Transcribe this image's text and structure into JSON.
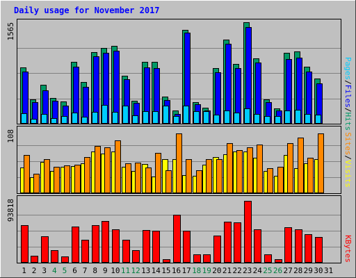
{
  "chart_data": {
    "type": "bar",
    "title": "Daily usage for November 2017",
    "categories": [
      "1",
      "2",
      "3",
      "4",
      "5",
      "6",
      "7",
      "8",
      "9",
      "10",
      "11",
      "12",
      "13",
      "14",
      "15",
      "16",
      "17",
      "18",
      "19",
      "20",
      "21",
      "22",
      "23",
      "24",
      "25",
      "26",
      "27",
      "28",
      "29",
      "30",
      "31"
    ],
    "weekend_days": [
      "4",
      "5",
      "11",
      "12",
      "18",
      "19",
      "25",
      "26"
    ],
    "panels": [
      {
        "name": "hits_files_pages",
        "ymax_label": "1565",
        "ymax": 1565,
        "ylabel_parts": [
          "Pages",
          "Files",
          "Hits"
        ],
        "series": [
          {
            "name": "Hits",
            "color": "#009966",
            "values": [
              870,
              370,
              600,
              400,
              340,
              950,
              640,
              1100,
              1170,
              1200,
              740,
              350,
              950,
              950,
              420,
              200,
              1450,
              330,
              250,
              860,
              1300,
              920,
              1560,
              1010,
              380,
              240,
              1090,
              1110,
              880,
              700
            ]
          },
          {
            "name": "Files",
            "color": "#0000ff",
            "values": [
              800,
              330,
              510,
              350,
              280,
              880,
              570,
              1040,
              1090,
              1130,
              690,
              320,
              870,
              860,
              360,
              150,
              1400,
              300,
              200,
              790,
              1230,
              860,
              1490,
              940,
              330,
              200,
              1000,
              1020,
              800,
              620
            ]
          },
          {
            "name": "Pages",
            "color": "#00ccff",
            "values": [
              160,
              80,
              150,
              90,
              120,
              170,
              110,
              180,
              290,
              180,
              280,
              130,
              190,
              190,
              280,
              120,
              280,
              190,
              190,
              140,
              200,
              170,
              240,
              150,
              120,
              120,
              200,
              210,
              150,
              140
            ]
          }
        ]
      },
      {
        "name": "visits_sites",
        "ymax_label": "108",
        "ymax": 108,
        "ylabel_parts": [
          "Sites",
          "Visits"
        ],
        "series": [
          {
            "name": "Visits",
            "color": "#ffff00",
            "values": [
              44,
              27,
              53,
              38,
              45,
              46,
              51,
              70,
              67,
              70,
              45,
              37,
              49,
              28,
              58,
              58,
              30,
              29,
              48,
              61,
              66,
              70,
              71,
              60,
              37,
              29,
              64,
              42,
              51,
              57
            ]
          },
          {
            "name": "Sites",
            "color": "#ff8800",
            "values": [
              65,
              33,
              57,
              45,
              47,
              48,
              61,
              80,
              78,
              89,
              50,
              52,
              44,
              68,
              39,
              101,
              58,
              39,
              57,
              57,
              84,
              73,
              77,
              82,
              42,
              45,
              85,
              94,
              60,
              101
            ]
          }
        ]
      },
      {
        "name": "kbytes",
        "ymax_label": "93818",
        "ymax": 93818,
        "ylabel_parts": [
          "KBytes"
        ],
        "series": [
          {
            "name": "KBytes",
            "color": "#ff0000",
            "values": [
              55000,
              10000,
              39000,
              18000,
              9000,
              53000,
              34000,
              55000,
              61000,
              49000,
              34000,
              18000,
              48000,
              47000,
              5000,
              70000,
              47000,
              12000,
              12000,
              40000,
              60000,
              59000,
              91000,
              49000,
              12000,
              5000,
              52000,
              49000,
              42000,
              38000
            ]
          }
        ]
      }
    ]
  },
  "colors": {
    "background": "#c0c0c0",
    "title": "#0000ff",
    "weekday_label": "#000000",
    "weekend_label": "#008040",
    "pages_label": "#00ccff",
    "files_label": "#0000ff",
    "hits_label": "#009966",
    "sites_label": "#ff8800",
    "visits_label": "#ffff00",
    "kbytes_label": "#ff0000"
  }
}
